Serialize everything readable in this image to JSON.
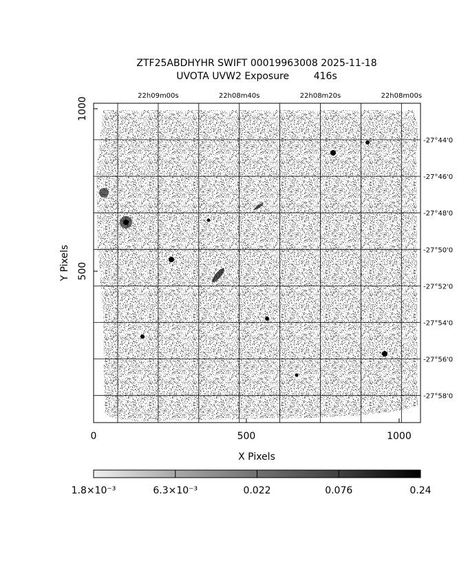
{
  "plot": {
    "title": [
      "ZTF25ABDHYHR SWIFT 00019963008 2025-11-18",
      "UVOTA UVW2 Exposure        416s"
    ],
    "xlabel": "X Pixels",
    "ylabel": "Y Pixels",
    "xlim": [
      0,
      1070
    ],
    "xticks": [
      0,
      500,
      1000
    ],
    "ylim": [
      34,
      1017
    ],
    "yticks": [
      500,
      1000
    ],
    "ra_ticks": [
      null,
      "22h09m00s",
      null,
      "22h08m40s",
      null,
      "22h08m20s",
      null,
      "22h08m00s"
    ],
    "dec_ticks": [
      "-27°44'0",
      "-27°46'0",
      "-27°48'0",
      "-27°50'0",
      "-27°52'0",
      "-27°54'0",
      "-27°56'0",
      "-27°58'0"
    ],
    "colorbar": [
      "1.8×10⁻³",
      "6.3×10⁻³",
      "0.022",
      "0.076",
      "0.24"
    ]
  }
}
